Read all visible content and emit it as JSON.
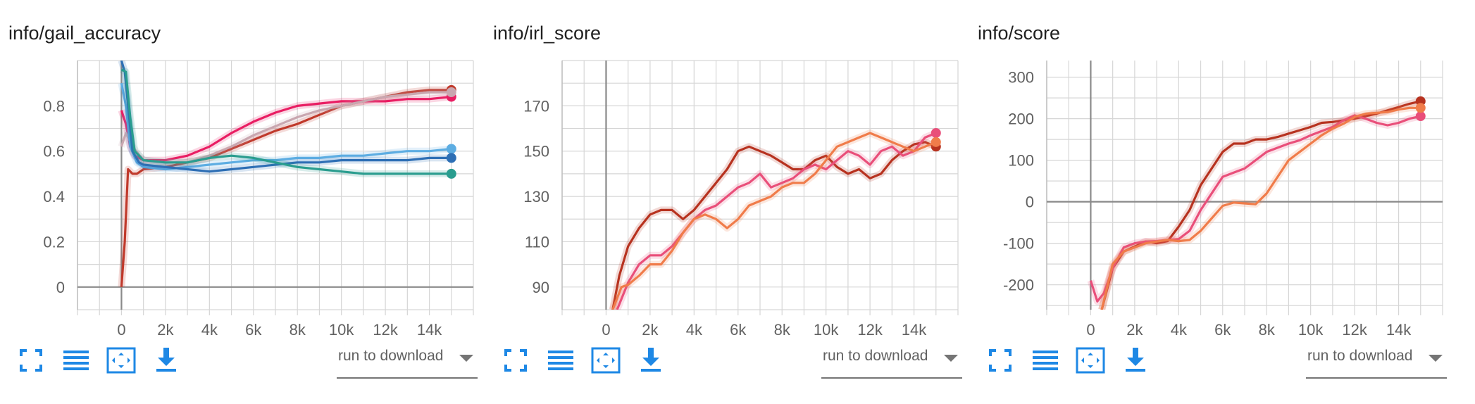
{
  "run_to_download_label": "run to download",
  "icons": [
    "fullscreen-icon",
    "toggle-lines-icon",
    "fit-domain-icon",
    "download-icon"
  ],
  "icon_color": "#1e88e5",
  "chart_data": [
    {
      "type": "line",
      "title": "info/gail_accuracy",
      "xlim": [
        -2000,
        16000
      ],
      "ylim": [
        -0.1,
        1.0
      ],
      "xticks": [
        0,
        2000,
        4000,
        6000,
        8000,
        10000,
        12000,
        14000
      ],
      "xtick_labels": [
        "0",
        "2k",
        "4k",
        "6k",
        "8k",
        "10k",
        "12k",
        "14k"
      ],
      "yticks": [
        0,
        0.2,
        0.4,
        0.6,
        0.8
      ],
      "ytick_labels": [
        "0",
        "0.2",
        "0.4",
        "0.6",
        "0.8"
      ],
      "grid": true,
      "series": [
        {
          "color": "#c0392b",
          "x": [
            0,
            150,
            300,
            500,
            700,
            1000,
            2000,
            3000,
            4000,
            5000,
            6000,
            7000,
            8000,
            9000,
            10000,
            11000,
            12000,
            13000,
            14000,
            15000
          ],
          "y": [
            0,
            0.2,
            0.52,
            0.5,
            0.5,
            0.52,
            0.53,
            0.55,
            0.57,
            0.61,
            0.65,
            0.69,
            0.72,
            0.76,
            0.8,
            0.82,
            0.84,
            0.86,
            0.87,
            0.87
          ]
        },
        {
          "color": "#e91e63",
          "x": [
            0,
            200,
            400,
            600,
            1000,
            2000,
            3000,
            4000,
            5000,
            6000,
            7000,
            8000,
            9000,
            10000,
            11000,
            12000,
            13000,
            14000,
            15000
          ],
          "y": [
            0.78,
            0.72,
            0.62,
            0.58,
            0.56,
            0.56,
            0.58,
            0.62,
            0.68,
            0.73,
            0.77,
            0.8,
            0.81,
            0.82,
            0.82,
            0.82,
            0.83,
            0.83,
            0.84
          ]
        },
        {
          "color": "#c9a7b0",
          "x": [
            0,
            200,
            500,
            1000,
            2000,
            3000,
            4000,
            5000,
            6000,
            7000,
            8000,
            9000,
            10000,
            11000,
            12000,
            13000,
            14000,
            15000
          ],
          "y": [
            0.62,
            0.68,
            0.62,
            0.56,
            0.55,
            0.55,
            0.58,
            0.62,
            0.67,
            0.71,
            0.75,
            0.78,
            0.8,
            0.82,
            0.84,
            0.85,
            0.86,
            0.86
          ]
        },
        {
          "color": "#5dade2",
          "x": [
            0,
            200,
            400,
            700,
            1000,
            2000,
            3000,
            4000,
            5000,
            6000,
            7000,
            8000,
            9000,
            10000,
            11000,
            12000,
            13000,
            14000,
            15000
          ],
          "y": [
            0.9,
            0.8,
            0.62,
            0.55,
            0.53,
            0.52,
            0.53,
            0.54,
            0.55,
            0.56,
            0.56,
            0.57,
            0.57,
            0.58,
            0.58,
            0.59,
            0.6,
            0.6,
            0.61
          ]
        },
        {
          "color": "#2e6fb5",
          "x": [
            0,
            150,
            300,
            500,
            800,
            1000,
            2000,
            3000,
            4000,
            5000,
            6000,
            7000,
            8000,
            9000,
            10000,
            11000,
            12000,
            13000,
            14000,
            15000
          ],
          "y": [
            1.0,
            0.95,
            0.8,
            0.6,
            0.55,
            0.54,
            0.53,
            0.52,
            0.51,
            0.52,
            0.53,
            0.54,
            0.55,
            0.55,
            0.56,
            0.56,
            0.56,
            0.56,
            0.57,
            0.57
          ]
        },
        {
          "color": "#2a9d8f",
          "x": [
            0,
            200,
            400,
            600,
            1000,
            2000,
            3000,
            4000,
            5000,
            6000,
            7000,
            8000,
            9000,
            10000,
            11000,
            12000,
            13000,
            14000,
            15000
          ],
          "y": [
            0.96,
            0.95,
            0.75,
            0.6,
            0.56,
            0.55,
            0.55,
            0.57,
            0.58,
            0.57,
            0.55,
            0.53,
            0.52,
            0.51,
            0.5,
            0.5,
            0.5,
            0.5,
            0.5
          ]
        }
      ]
    },
    {
      "type": "line",
      "title": "info/irl_score",
      "xlim": [
        -2000,
        16000
      ],
      "ylim": [
        80,
        190
      ],
      "xticks": [
        0,
        2000,
        4000,
        6000,
        8000,
        10000,
        12000,
        14000
      ],
      "xtick_labels": [
        "0",
        "2k",
        "4k",
        "6k",
        "8k",
        "10k",
        "12k",
        "14k"
      ],
      "yticks": [
        90,
        110,
        130,
        150,
        170
      ],
      "ytick_labels": [
        "90",
        "110",
        "130",
        "150",
        "170"
      ],
      "grid": true,
      "series": [
        {
          "color": "#b7321f",
          "x": [
            300,
            600,
            1000,
            1500,
            2000,
            2500,
            3000,
            3500,
            4000,
            4500,
            5000,
            5500,
            6000,
            6500,
            7000,
            7500,
            8000,
            8500,
            9000,
            9500,
            10000,
            10500,
            11000,
            11500,
            12000,
            12500,
            13000,
            13500,
            14000,
            14500,
            15000
          ],
          "y": [
            80,
            95,
            108,
            116,
            122,
            124,
            124,
            120,
            124,
            130,
            136,
            142,
            150,
            152,
            150,
            148,
            145,
            142,
            142,
            146,
            148,
            143,
            140,
            142,
            138,
            140,
            146,
            150,
            153,
            154,
            152
          ]
        },
        {
          "color": "#e94f7a",
          "x": [
            500,
            1000,
            1500,
            2000,
            2500,
            3000,
            3500,
            4000,
            4500,
            5000,
            5500,
            6000,
            6500,
            7000,
            7500,
            8000,
            8500,
            9000,
            9500,
            10000,
            10500,
            11000,
            11500,
            12000,
            12500,
            13000,
            13500,
            14000,
            14500,
            15000
          ],
          "y": [
            80,
            92,
            100,
            104,
            104,
            108,
            114,
            120,
            124,
            126,
            130,
            134,
            136,
            140,
            134,
            136,
            138,
            142,
            144,
            142,
            146,
            150,
            148,
            144,
            150,
            152,
            148,
            150,
            156,
            158
          ]
        },
        {
          "color": "#f07c4a",
          "x": [
            300,
            700,
            1000,
            1500,
            2000,
            2500,
            3000,
            3500,
            4000,
            4500,
            5000,
            5500,
            6000,
            6500,
            7000,
            7500,
            8000,
            8500,
            9000,
            9500,
            10000,
            10500,
            11000,
            11500,
            12000,
            12500,
            13000,
            13500,
            14000,
            14500,
            15000
          ],
          "y": [
            80,
            90,
            91,
            95,
            100,
            100,
            106,
            114,
            120,
            122,
            120,
            116,
            120,
            126,
            128,
            130,
            134,
            136,
            136,
            140,
            146,
            152,
            154,
            156,
            158,
            156,
            154,
            152,
            150,
            152,
            154
          ]
        }
      ]
    },
    {
      "type": "line",
      "title": "info/score",
      "xlim": [
        -2000,
        16000
      ],
      "ylim": [
        -260,
        340
      ],
      "xticks": [
        0,
        2000,
        4000,
        6000,
        8000,
        10000,
        12000,
        14000
      ],
      "xtick_labels": [
        "0",
        "2k",
        "4k",
        "6k",
        "8k",
        "10k",
        "12k",
        "14k"
      ],
      "yticks": [
        -200,
        -100,
        0,
        100,
        200,
        300
      ],
      "ytick_labels": [
        "-200",
        "-100",
        "0",
        "100",
        "200",
        "300"
      ],
      "grid": true,
      "series": [
        {
          "color": "#b7321f",
          "x": [
            500,
            800,
            1000,
            1500,
            2000,
            2500,
            3000,
            3500,
            4000,
            4500,
            5000,
            5500,
            6000,
            6500,
            7000,
            7500,
            8000,
            8500,
            9000,
            9500,
            10000,
            10500,
            11000,
            11500,
            12000,
            12500,
            13000,
            13500,
            14000,
            14500,
            15000
          ],
          "y": [
            -260,
            -200,
            -160,
            -120,
            -108,
            -96,
            -100,
            -95,
            -60,
            -20,
            40,
            80,
            120,
            140,
            140,
            150,
            150,
            156,
            164,
            172,
            180,
            190,
            192,
            196,
            200,
            206,
            212,
            220,
            228,
            236,
            242
          ]
        },
        {
          "color": "#e94f7a",
          "x": [
            0,
            300,
            600,
            1000,
            1500,
            2000,
            2500,
            3000,
            3500,
            4000,
            4500,
            5000,
            5500,
            6000,
            6500,
            7000,
            7500,
            8000,
            8500,
            9000,
            9500,
            10000,
            10500,
            11000,
            11500,
            12000,
            12500,
            13000,
            13500,
            14000,
            14500,
            15000
          ],
          "y": [
            -190,
            -240,
            -220,
            -160,
            -110,
            -100,
            -96,
            -95,
            -92,
            -90,
            -70,
            -20,
            20,
            60,
            70,
            80,
            100,
            120,
            130,
            140,
            148,
            160,
            170,
            180,
            196,
            208,
            200,
            190,
            184,
            190,
            200,
            206
          ]
        },
        {
          "color": "#f07c4a",
          "x": [
            500,
            1000,
            1500,
            2000,
            2500,
            3000,
            3500,
            4000,
            4500,
            5000,
            5500,
            6000,
            6500,
            7000,
            7500,
            8000,
            8500,
            9000,
            9500,
            10000,
            10500,
            11000,
            11500,
            12000,
            12500,
            13000,
            13500,
            14000,
            14500,
            15000
          ],
          "y": [
            -260,
            -150,
            -120,
            -110,
            -100,
            -96,
            -92,
            -95,
            -92,
            -70,
            -40,
            -10,
            -2,
            -4,
            -6,
            20,
            60,
            100,
            120,
            140,
            160,
            176,
            188,
            204,
            212,
            214,
            216,
            222,
            226,
            226
          ]
        }
      ]
    }
  ]
}
